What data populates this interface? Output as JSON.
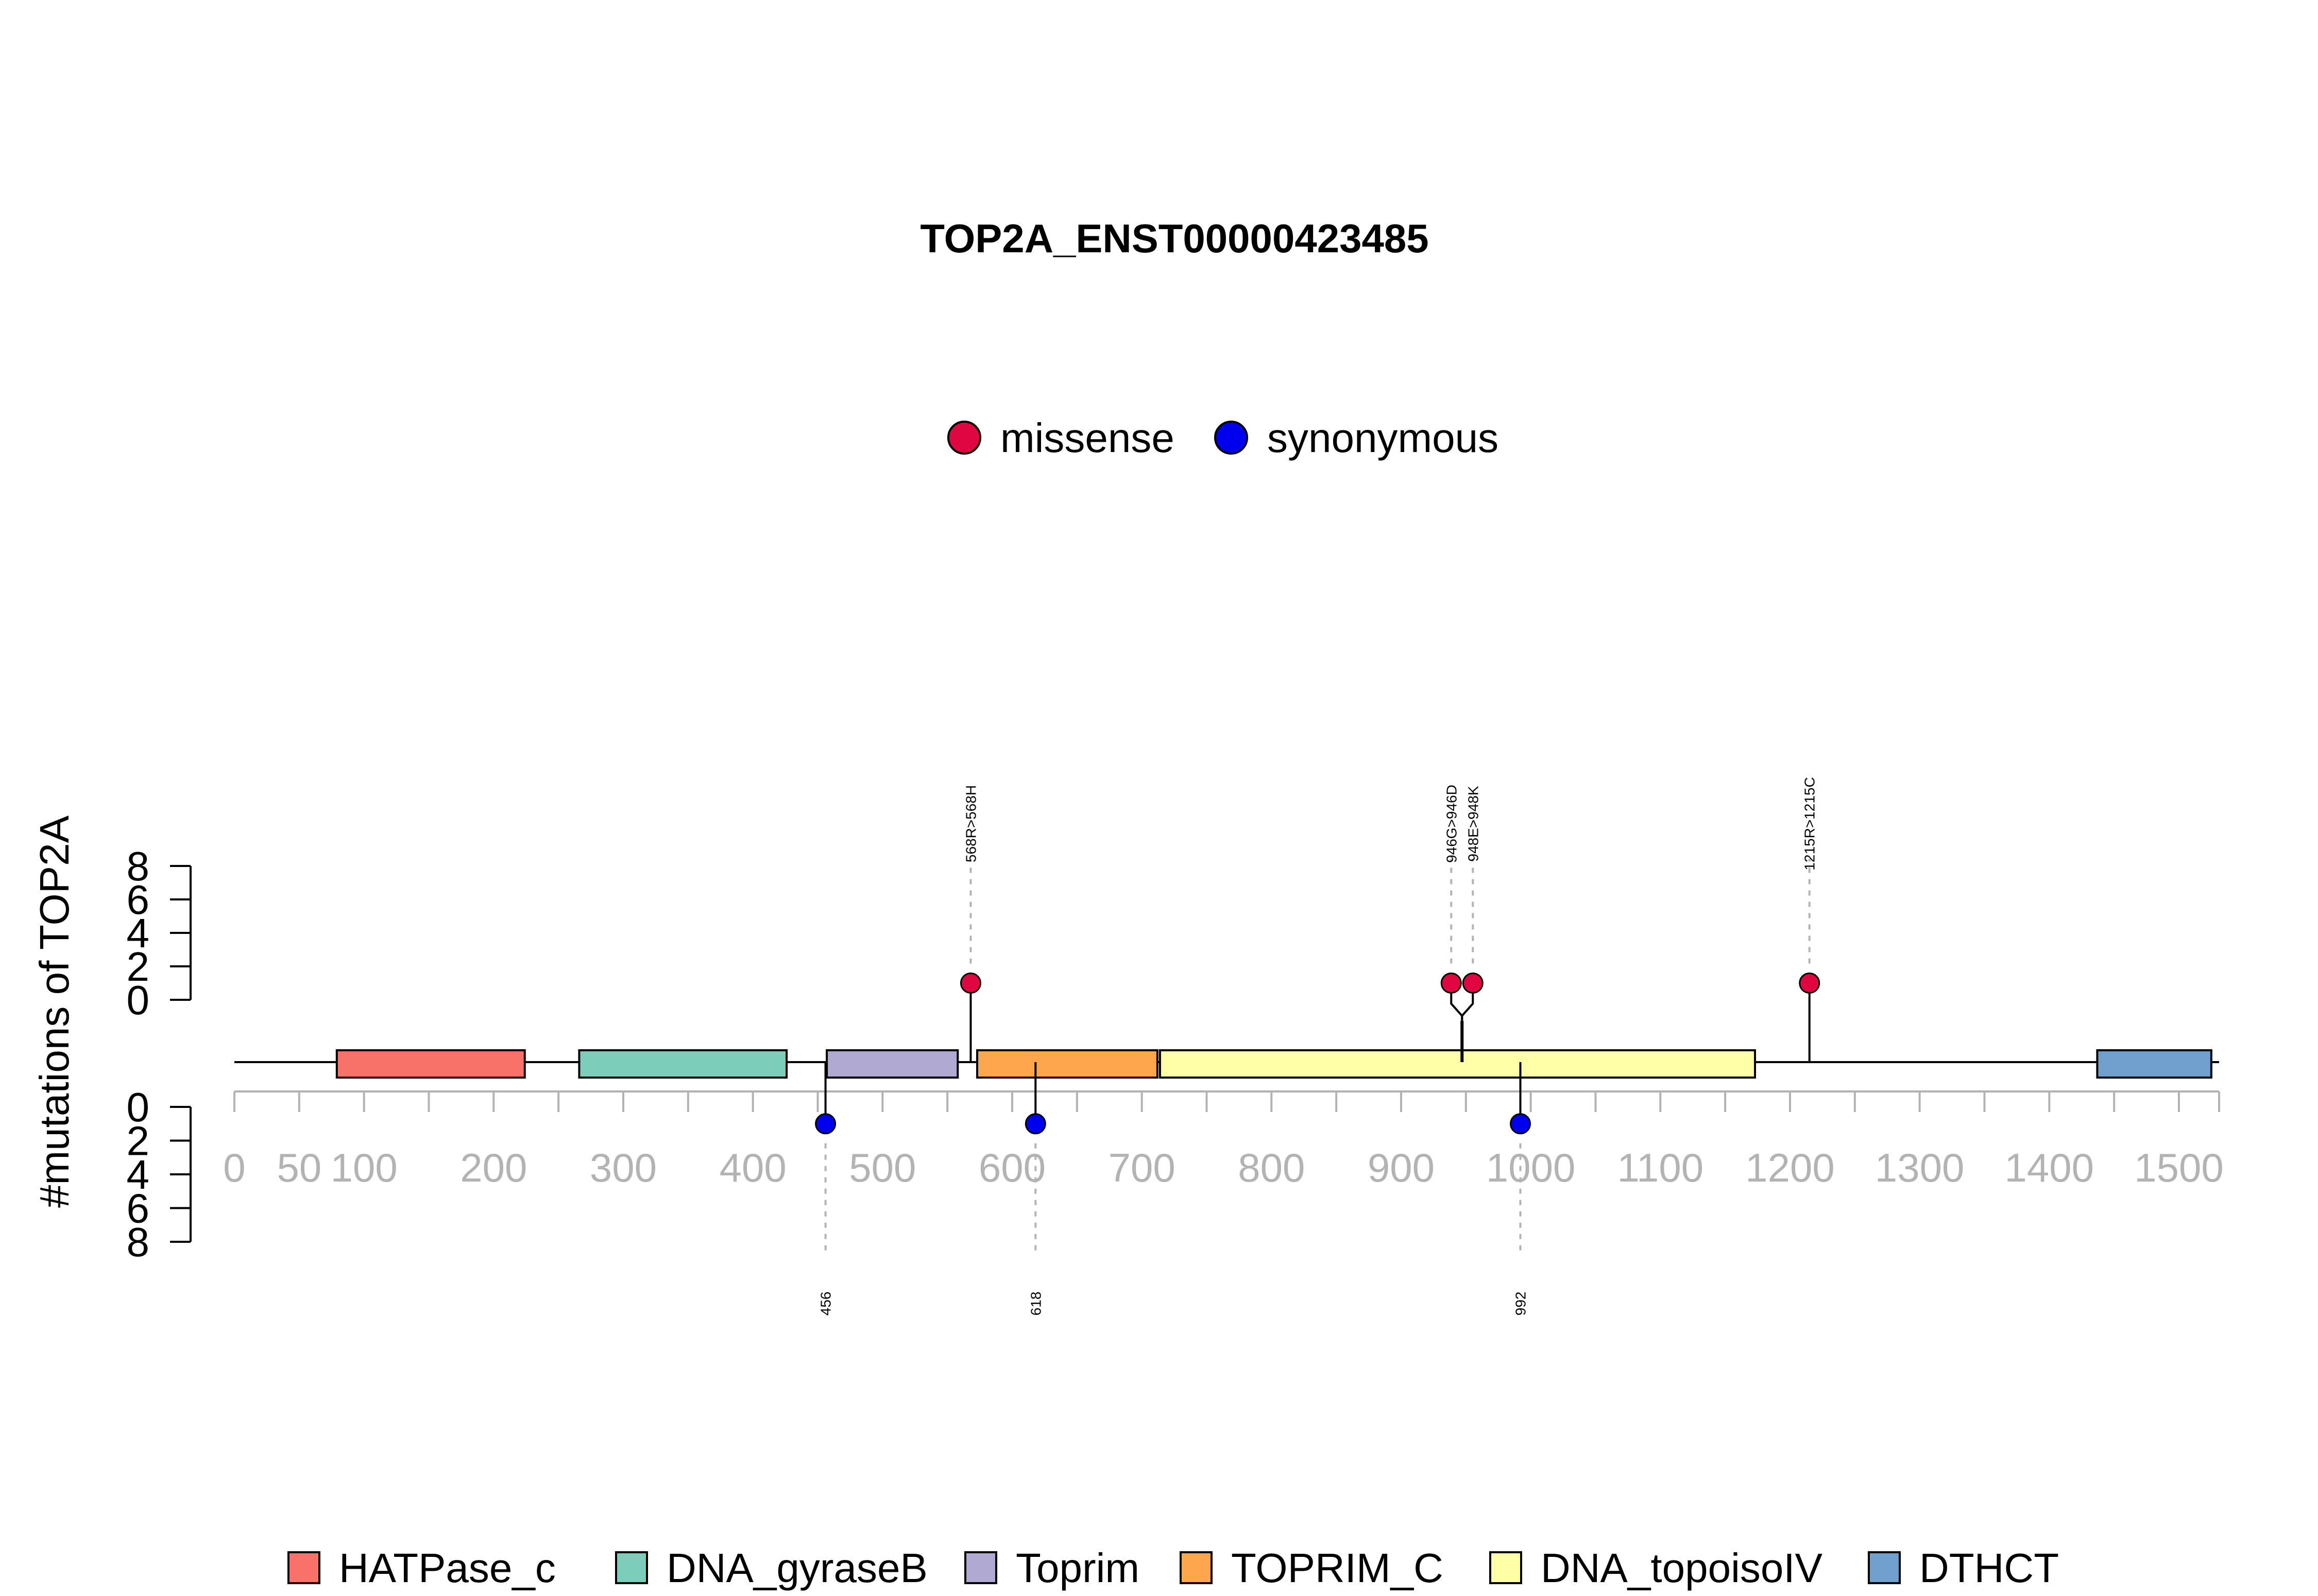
{
  "chart_data": {
    "type": "lollipop",
    "title": "TOP2A_ENST00000423485",
    "ylabel": "#mutations of TOP2A",
    "protein_length": 1531,
    "x_ticks": [
      0,
      50,
      100,
      200,
      300,
      400,
      500,
      600,
      700,
      800,
      900,
      1000,
      1100,
      1200,
      1300,
      1400,
      1500
    ],
    "y_ticks_top": [
      0,
      2,
      4,
      6,
      8
    ],
    "y_ticks_bottom": [
      0,
      2,
      4,
      6,
      8
    ],
    "ylim": [
      0,
      8
    ],
    "mutation_types": [
      {
        "name": "missense",
        "color": "#e0063f"
      },
      {
        "name": "synonymous",
        "color": "#0000ee"
      }
    ],
    "domains": [
      {
        "name": "HATPase_c",
        "start": 79,
        "end": 224,
        "color": "#f9726a"
      },
      {
        "name": "DNA_gyraseB",
        "start": 266,
        "end": 426,
        "color": "#7dcdbb"
      },
      {
        "name": "Toprim",
        "start": 457,
        "end": 558,
        "color": "#b0aad3"
      },
      {
        "name": "TOPRIM_C",
        "start": 573,
        "end": 712,
        "color": "#fea64e"
      },
      {
        "name": "DNA_topoisoIV",
        "start": 714,
        "end": 1173,
        "color": "#ffffa8"
      },
      {
        "name": "DTHCT",
        "start": 1437,
        "end": 1525,
        "color": "#6fa0cd"
      }
    ],
    "mutations": [
      {
        "position": 568,
        "label": "568R>568H",
        "type": "missense",
        "count": 1,
        "side": "top"
      },
      {
        "position": 946,
        "label": "946G>946D",
        "type": "missense",
        "count": 1,
        "side": "top"
      },
      {
        "position": 948,
        "label": "948E>948K",
        "type": "missense",
        "count": 1,
        "side": "top"
      },
      {
        "position": 1215,
        "label": "1215R>1215C",
        "type": "missense",
        "count": 1,
        "side": "top"
      },
      {
        "position": 456,
        "label": "456",
        "type": "synonymous",
        "count": 1,
        "side": "bottom"
      },
      {
        "position": 618,
        "label": "618",
        "type": "synonymous",
        "count": 1,
        "side": "bottom"
      },
      {
        "position": 992,
        "label": "992",
        "type": "synonymous",
        "count": 1,
        "side": "bottom"
      }
    ]
  }
}
